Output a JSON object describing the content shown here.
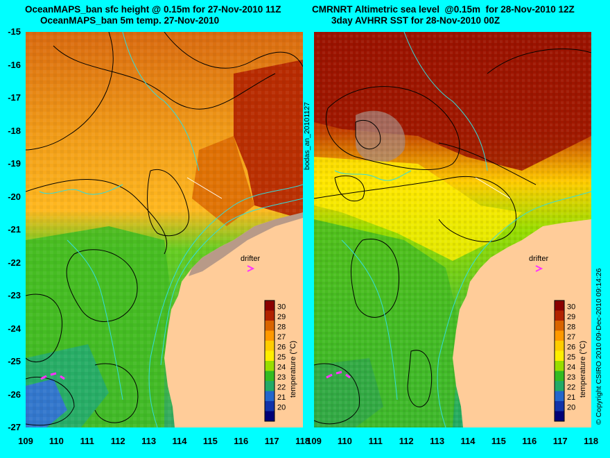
{
  "titles": {
    "left_line1": "OceanMAPS_ban sfc height @ 0.15m for 27-Nov-2010 11Z",
    "left_line2": "OceanMAPS_ban 5m temp. 27-Nov-2010",
    "right_line1": "CMRNRT Altimetric sea level  @0.15m  for 28-Nov-2010 12Z",
    "right_line2": "3day AVHRR SST for 28-Nov-2010 00Z"
  },
  "axes": {
    "lat_labels": [
      "-15",
      "-16",
      "-17",
      "-18",
      "-19",
      "-20",
      "-21",
      "-22",
      "-23",
      "-24",
      "-25",
      "-26",
      "-27"
    ],
    "lon_labels": [
      "109",
      "110",
      "111",
      "112",
      "113",
      "114",
      "115",
      "116",
      "117",
      "118"
    ]
  },
  "colorbar": {
    "label": "temperature (°C)",
    "ticks": [
      "30",
      "29",
      "28",
      "27",
      "26",
      "25",
      "24",
      "23",
      "22",
      "21",
      "20"
    ],
    "colors": [
      "#8b0000",
      "#b22200",
      "#d96400",
      "#ff9900",
      "#ffcc00",
      "#ffee00",
      "#99dd00",
      "#33bb22",
      "#22aa66",
      "#2266cc",
      "#1133aa",
      "#000077"
    ]
  },
  "labels": {
    "drifter": "drifter",
    "bodas": "bodas_an_20101127",
    "copyright": "© Copyright CSIRO 2010   09-Dec-2010 09:14:26"
  }
}
